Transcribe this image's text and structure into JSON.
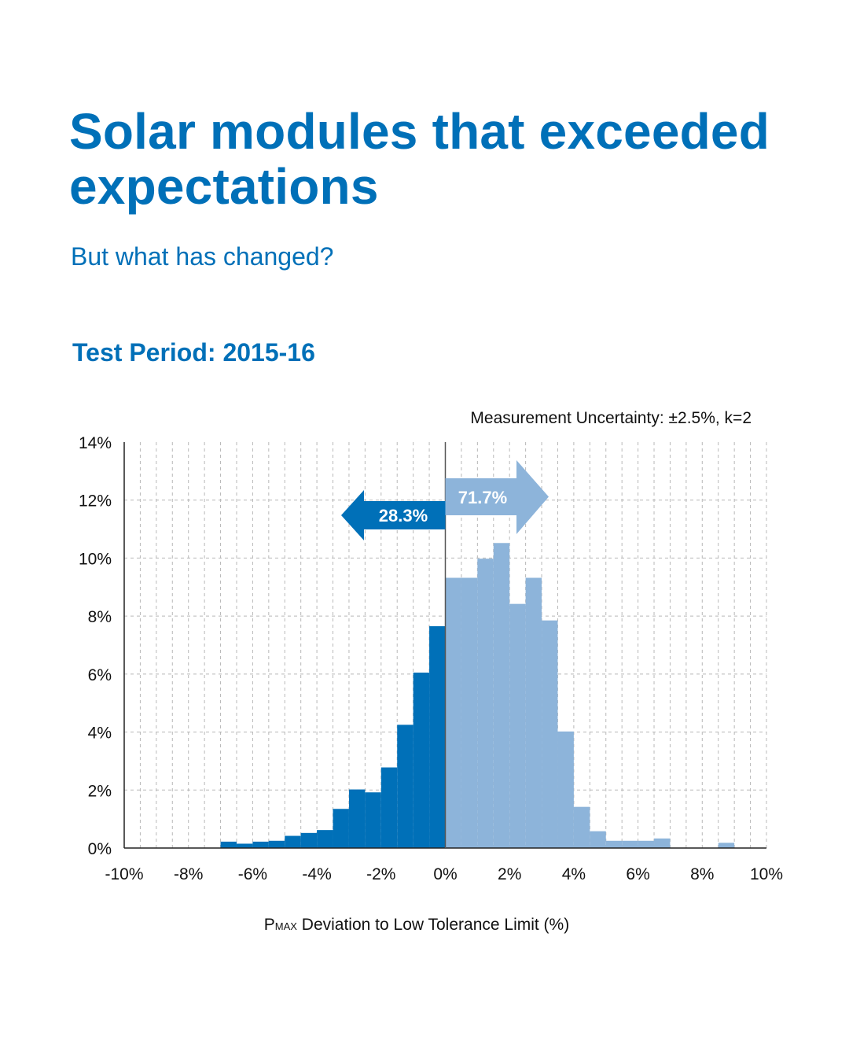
{
  "title": "Solar modules that exceeded expectations",
  "subtitle": "But what has changed?",
  "test_period": "Test Period: 2015-16",
  "note": "Measurement Uncertainty: ±2.5%, k=2",
  "xlabel": {
    "symbol": "P",
    "subscript": "MAX",
    "text": " Deviation to Low Tolerance Limit (%)"
  },
  "colors": {
    "accent": "#0070b8",
    "below_zero": "#0070b8",
    "above_zero": "#8db4da",
    "grid": "#b8b8b8",
    "axis": "#222222"
  },
  "chart_data": {
    "type": "bar",
    "xlim": [
      -10,
      10
    ],
    "ylim": [
      0,
      14
    ],
    "xticks": [
      -10,
      -8,
      -6,
      -4,
      -2,
      0,
      2,
      4,
      6,
      8,
      10
    ],
    "xtick_labels": [
      "-10%",
      "-8%",
      "-6%",
      "-4%",
      "-2%",
      "0%",
      "2%",
      "4%",
      "6%",
      "8%",
      "10%"
    ],
    "yticks": [
      0,
      2,
      4,
      6,
      8,
      10,
      12,
      14
    ],
    "ytick_labels": [
      "0%",
      "2%",
      "4%",
      "6%",
      "8%",
      "10%",
      "12%",
      "14%"
    ],
    "grid": true,
    "bin_width": 0.5,
    "series": [
      {
        "group": "below",
        "bin_starts": [
          -7,
          -6.5,
          -6,
          -5.5,
          -5,
          -4.5,
          -4,
          -3.5,
          -3,
          -2.5,
          -2,
          -1.5,
          -1,
          -0.5
        ],
        "values": [
          0.22,
          0.15,
          0.22,
          0.25,
          0.42,
          0.52,
          0.62,
          1.35,
          2.02,
          1.92,
          2.78,
          4.25,
          6.05,
          7.65
        ]
      },
      {
        "group": "above",
        "bin_starts": [
          0,
          0.5,
          1,
          1.5,
          2,
          2.5,
          3,
          3.5,
          4,
          4.5,
          5,
          5.5,
          6,
          6.5,
          7,
          7.5,
          8,
          8.5,
          9,
          9.5
        ],
        "values": [
          9.32,
          9.32,
          9.98,
          10.52,
          8.42,
          9.32,
          7.85,
          4.02,
          1.42,
          0.58,
          0.25,
          0.25,
          0.25,
          0.33,
          0,
          0,
          0,
          0.18,
          0,
          0
        ]
      }
    ],
    "annotations": [
      {
        "label": "28.3%",
        "direction": "left",
        "group": "below"
      },
      {
        "label": "71.7%",
        "direction": "right",
        "group": "above"
      }
    ]
  }
}
